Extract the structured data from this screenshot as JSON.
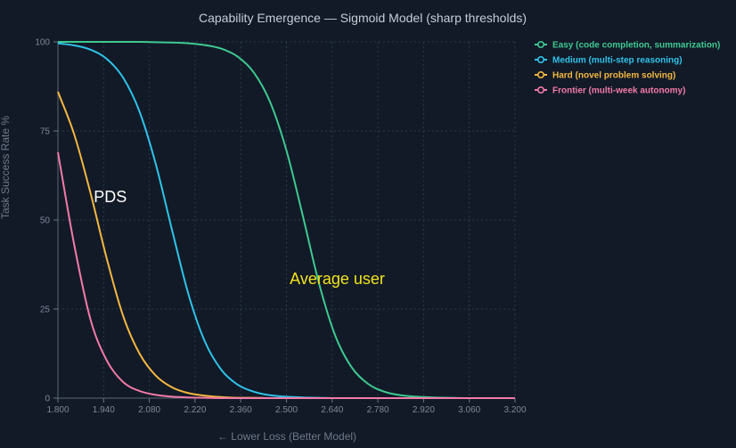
{
  "chart_data": {
    "type": "line",
    "title": "Capability Emergence — Sigmoid Model (sharp thresholds)",
    "xlabel": "← Lower Loss (Better Model)",
    "ylabel": "Task Success Rate %",
    "xlim": [
      1.8,
      3.2
    ],
    "ylim": [
      0,
      100
    ],
    "x_ticks": [
      "1.800",
      "1.940",
      "2.080",
      "2.220",
      "2.360",
      "2.500",
      "2.640",
      "2.780",
      "2.920",
      "3.060",
      "3.200"
    ],
    "y_ticks": [
      "0",
      "25",
      "50",
      "75",
      "100"
    ],
    "grid": true,
    "legend_position": "top-right",
    "x": [
      1.8,
      1.85,
      1.9,
      1.95,
      2.0,
      2.05,
      2.1,
      2.15,
      2.2,
      2.25,
      2.3,
      2.35,
      2.4,
      2.45,
      2.5,
      2.55,
      2.6,
      2.65,
      2.7,
      2.75,
      2.8,
      2.85,
      2.9,
      2.95,
      3.0,
      3.05,
      3.1,
      3.15,
      3.2
    ],
    "series": [
      {
        "name": "Easy (code completion, summarization)",
        "color": "#3ec98f",
        "values": [
          100,
          100,
          100,
          100,
          100,
          100,
          99.9,
          99.8,
          99.6,
          99.1,
          98.1,
          95.9,
          91.4,
          83.1,
          69.5,
          51.2,
          32.1,
          17.4,
          8.6,
          4.0,
          1.8,
          0.8,
          0.4,
          0.2,
          0.1,
          0.0,
          0.0,
          0.0,
          0.0
        ]
      },
      {
        "name": "Medium (multi-step reasoning)",
        "color": "#2fc3e8",
        "values": [
          99.6,
          99.0,
          97.8,
          95.2,
          89.9,
          80.4,
          65.6,
          47.0,
          29.1,
          15.9,
          8.0,
          3.8,
          1.8,
          0.8,
          0.4,
          0.2,
          0.1,
          0.0,
          0.0,
          0.0,
          0.0,
          0.0,
          0.0,
          0.0,
          0.0,
          0.0,
          0.0,
          0.0,
          0.0
        ]
      },
      {
        "name": "Hard (novel problem solving)",
        "color": "#f4b740",
        "values": [
          86.0,
          74.0,
          57.5,
          39.0,
          23.0,
          12.5,
          6.3,
          3.0,
          1.4,
          0.7,
          0.3,
          0.1,
          0.1,
          0.0,
          0.0,
          0.0,
          0.0,
          0.0,
          0.0,
          0.0,
          0.0,
          0.0,
          0.0,
          0.0,
          0.0,
          0.0,
          0.0,
          0.0,
          0.0
        ]
      },
      {
        "name": "Frontier (multi-week autonomy)",
        "color": "#f27aa8",
        "values": [
          69.0,
          43.0,
          22.0,
          10.5,
          4.5,
          2.0,
          0.9,
          0.4,
          0.2,
          0.1,
          0.0,
          0.0,
          0.0,
          0.0,
          0.0,
          0.0,
          0.0,
          0.0,
          0.0,
          0.0,
          0.0,
          0.0,
          0.0,
          0.0,
          0.0,
          0.0,
          0.0,
          0.0,
          0.0
        ]
      }
    ],
    "annotations": [
      {
        "text": "PDS",
        "x": 1.91,
        "y": 55,
        "color": "#ffffff"
      },
      {
        "text": "Average user",
        "x": 2.51,
        "y": 32,
        "color": "#f2e21c"
      }
    ]
  }
}
